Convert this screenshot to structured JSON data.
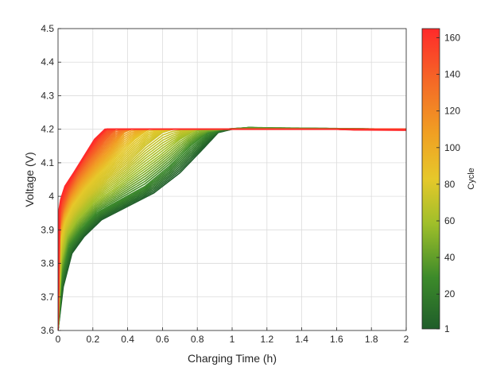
{
  "chart_data": {
    "type": "line",
    "title": "",
    "xlabel": "Charging Time (h)",
    "ylabel": "Voltage (V)",
    "xlim": [
      0,
      2
    ],
    "ylim": [
      3.6,
      4.5
    ],
    "x_ticks": [
      "0",
      "0.2",
      "0.4",
      "0.6",
      "0.8",
      "1",
      "1.2",
      "1.4",
      "1.6",
      "1.8",
      "2"
    ],
    "y_ticks": [
      "3.6",
      "3.7",
      "3.8",
      "3.9",
      "4",
      "4.1",
      "4.2",
      "4.3",
      "4.4",
      "4.5"
    ],
    "grid": true,
    "colorbar": {
      "label": "Cycle",
      "range": [
        1,
        165
      ],
      "ticks": [
        "1",
        "20",
        "40",
        "60",
        "80",
        "100",
        "120",
        "140",
        "160"
      ],
      "colormap": [
        "#1f5d2a",
        "#3c8a2a",
        "#9fbf2a",
        "#e6c82a",
        "#f0a023",
        "#f46a26",
        "#ff2a2a"
      ]
    },
    "series": [
      {
        "cycle": 1,
        "color": "#1f5d2a",
        "points": [
          [
            0.0,
            3.6
          ],
          [
            0.03,
            3.73
          ],
          [
            0.08,
            3.83
          ],
          [
            0.15,
            3.88
          ],
          [
            0.25,
            3.93
          ],
          [
            0.4,
            3.97
          ],
          [
            0.55,
            4.01
          ],
          [
            0.7,
            4.07
          ],
          [
            0.83,
            4.14
          ],
          [
            0.92,
            4.19
          ],
          [
            1.0,
            4.2
          ],
          [
            1.1,
            4.205
          ],
          [
            1.25,
            4.2
          ],
          [
            2.0,
            4.2
          ]
        ]
      },
      {
        "cycle": 20,
        "color": "#3c8a2a",
        "points": [
          [
            0.0,
            3.6
          ],
          [
            0.02,
            3.76
          ],
          [
            0.06,
            3.85
          ],
          [
            0.13,
            3.9
          ],
          [
            0.22,
            3.95
          ],
          [
            0.36,
            3.99
          ],
          [
            0.5,
            4.03
          ],
          [
            0.64,
            4.09
          ],
          [
            0.76,
            4.15
          ],
          [
            0.86,
            4.19
          ],
          [
            0.95,
            4.2
          ],
          [
            1.1,
            4.205
          ],
          [
            2.0,
            4.2
          ]
        ]
      },
      {
        "cycle": 40,
        "color": "#9fbf2a",
        "points": [
          [
            0.0,
            3.6
          ],
          [
            0.015,
            3.8
          ],
          [
            0.05,
            3.88
          ],
          [
            0.11,
            3.93
          ],
          [
            0.2,
            3.98
          ],
          [
            0.32,
            4.02
          ],
          [
            0.45,
            4.07
          ],
          [
            0.58,
            4.12
          ],
          [
            0.7,
            4.17
          ],
          [
            0.8,
            4.2
          ],
          [
            1.0,
            4.2
          ],
          [
            2.0,
            4.2
          ]
        ]
      },
      {
        "cycle": 60,
        "color": "#cfc42a",
        "points": [
          [
            0.0,
            3.6
          ],
          [
            0.012,
            3.83
          ],
          [
            0.04,
            3.9
          ],
          [
            0.09,
            3.95
          ],
          [
            0.17,
            4.0
          ],
          [
            0.28,
            4.05
          ],
          [
            0.4,
            4.1
          ],
          [
            0.5,
            4.15
          ],
          [
            0.6,
            4.19
          ],
          [
            0.66,
            4.2
          ],
          [
            1.0,
            4.2
          ],
          [
            2.0,
            4.2
          ]
        ]
      },
      {
        "cycle": 80,
        "color": "#e6c82a",
        "points": [
          [
            0.0,
            3.6
          ],
          [
            0.01,
            3.86
          ],
          [
            0.035,
            3.92
          ],
          [
            0.08,
            3.97
          ],
          [
            0.15,
            4.02
          ],
          [
            0.24,
            4.07
          ],
          [
            0.34,
            4.12
          ],
          [
            0.44,
            4.17
          ],
          [
            0.52,
            4.2
          ],
          [
            1.0,
            4.2
          ],
          [
            2.0,
            4.2
          ]
        ]
      },
      {
        "cycle": 100,
        "color": "#f0a023",
        "points": [
          [
            0.0,
            3.6
          ],
          [
            0.008,
            3.88
          ],
          [
            0.03,
            3.94
          ],
          [
            0.07,
            3.99
          ],
          [
            0.13,
            4.04
          ],
          [
            0.21,
            4.09
          ],
          [
            0.3,
            4.14
          ],
          [
            0.38,
            4.19
          ],
          [
            0.42,
            4.2
          ],
          [
            1.0,
            4.2
          ],
          [
            2.0,
            4.2
          ]
        ]
      },
      {
        "cycle": 120,
        "color": "#f46a26",
        "points": [
          [
            0.0,
            3.6
          ],
          [
            0.006,
            3.9
          ],
          [
            0.025,
            3.96
          ],
          [
            0.06,
            4.01
          ],
          [
            0.11,
            4.06
          ],
          [
            0.18,
            4.11
          ],
          [
            0.26,
            4.16
          ],
          [
            0.33,
            4.2
          ],
          [
            1.0,
            4.2
          ],
          [
            2.0,
            4.2
          ]
        ]
      },
      {
        "cycle": 140,
        "color": "#fa4428",
        "points": [
          [
            0.0,
            3.6
          ],
          [
            0.004,
            3.93
          ],
          [
            0.02,
            3.98
          ],
          [
            0.05,
            4.02
          ],
          [
            0.1,
            4.07
          ],
          [
            0.16,
            4.12
          ],
          [
            0.23,
            4.17
          ],
          [
            0.28,
            4.2
          ],
          [
            1.0,
            4.2
          ],
          [
            2.0,
            4.2
          ]
        ]
      },
      {
        "cycle": 165,
        "color": "#ff2a2a",
        "points": [
          [
            0.0,
            3.6
          ],
          [
            0.003,
            3.95
          ],
          [
            0.015,
            3.99
          ],
          [
            0.04,
            4.03
          ],
          [
            0.09,
            4.07
          ],
          [
            0.15,
            4.12
          ],
          [
            0.21,
            4.17
          ],
          [
            0.27,
            4.2
          ],
          [
            0.6,
            4.2
          ],
          [
            1.2,
            4.2
          ],
          [
            1.6,
            4.2
          ],
          [
            1.7,
            4.198
          ],
          [
            2.0,
            4.197
          ]
        ]
      }
    ]
  }
}
